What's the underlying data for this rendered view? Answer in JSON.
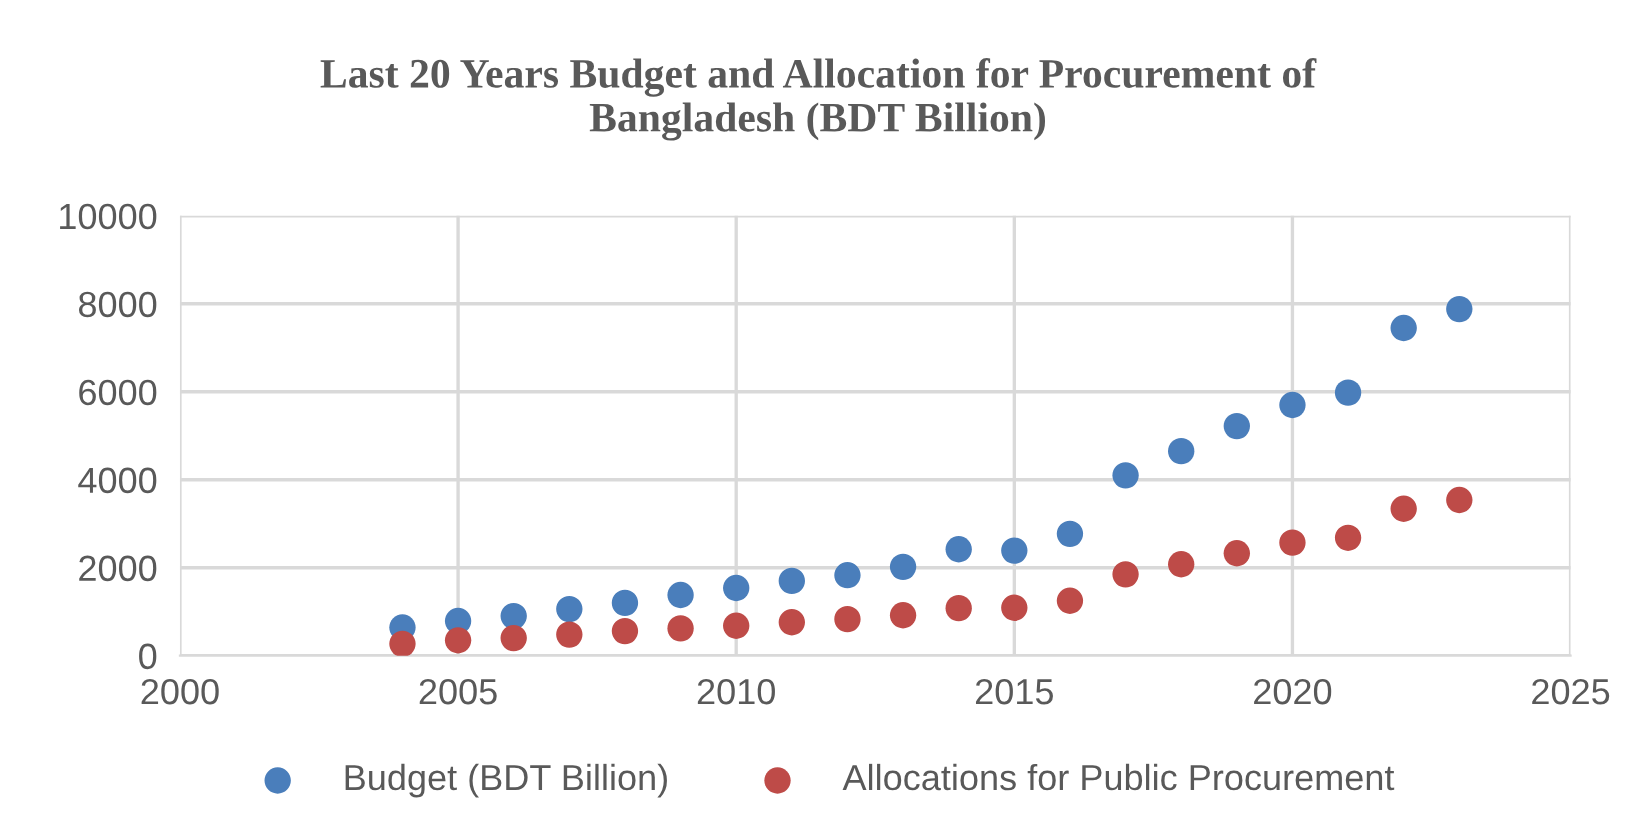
{
  "chart_data": {
    "type": "scatter",
    "title": "Last 20 Years Budget and Allocation for Procurement of\nBangladesh (BDT Billion)",
    "x": [
      2004,
      2005,
      2006,
      2007,
      2008,
      2009,
      2010,
      2011,
      2012,
      2013,
      2014,
      2015,
      2016,
      2017,
      2018,
      2019,
      2020,
      2021,
      2022,
      2023
    ],
    "series": [
      {
        "name": "Budget (BDT Billion)",
        "color": "#4a7ebb",
        "values": [
          640,
          790,
          900,
          1060,
          1200,
          1380,
          1540,
          1700,
          1830,
          2020,
          2420,
          2390,
          2770,
          4100,
          4650,
          5220,
          5700,
          5980,
          7450,
          7880
        ]
      },
      {
        "name": "Allocations for Public Procurement",
        "color": "#be4b48",
        "values": [
          270,
          350,
          400,
          480,
          560,
          620,
          680,
          760,
          830,
          920,
          1080,
          1090,
          1250,
          1850,
          2080,
          2330,
          2570,
          2680,
          3340,
          3540
        ]
      }
    ],
    "xlim": [
      2000,
      2025
    ],
    "xticks": [
      2000,
      2005,
      2010,
      2015,
      2020,
      2025
    ],
    "ylim": [
      0,
      10000
    ],
    "yticks": [
      0,
      2000,
      4000,
      6000,
      8000,
      10000
    ],
    "grid": true,
    "legend": "bottom",
    "marker": "circle"
  }
}
